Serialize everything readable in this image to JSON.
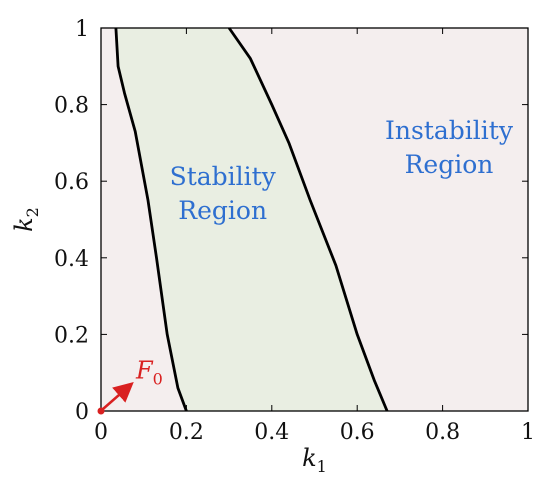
{
  "chart_data": {
    "type": "area",
    "xlim": [
      0,
      1
    ],
    "ylim": [
      0,
      1
    ],
    "x_ticks": [
      "0",
      "0.2",
      "0.4",
      "0.6",
      "0.8",
      "1"
    ],
    "y_ticks": [
      "0",
      "0.2",
      "0.4",
      "0.6",
      "0.8",
      "1"
    ],
    "xlabel": {
      "main": "k",
      "sub": "1"
    },
    "ylabel": {
      "main": "k",
      "sub": "2"
    },
    "grid": false,
    "colors": {
      "instability_fill": "#f4eeee",
      "stability_fill": "#e9eee2",
      "boundary": "#000000",
      "region_text": "#2e6fd0",
      "annotation": "#d92020"
    },
    "boundaries": [
      {
        "points": [
          [
            0.035,
            1.0
          ],
          [
            0.04,
            0.9
          ],
          [
            0.055,
            0.83
          ],
          [
            0.08,
            0.73
          ],
          [
            0.11,
            0.55
          ],
          [
            0.13,
            0.4
          ],
          [
            0.155,
            0.2
          ],
          [
            0.18,
            0.06
          ],
          [
            0.2,
            0.0
          ]
        ]
      },
      {
        "points": [
          [
            0.3,
            1.0
          ],
          [
            0.35,
            0.92
          ],
          [
            0.4,
            0.8
          ],
          [
            0.44,
            0.7
          ],
          [
            0.49,
            0.55
          ],
          [
            0.55,
            0.38
          ],
          [
            0.6,
            0.2
          ],
          [
            0.64,
            0.08
          ],
          [
            0.67,
            0.0
          ]
        ]
      }
    ],
    "regions": [
      {
        "label_lines": [
          "Stability",
          "Region"
        ],
        "position": [
          0.285,
          0.59
        ]
      },
      {
        "label_lines": [
          "Instability",
          "Region"
        ],
        "position": [
          0.815,
          0.71
        ]
      }
    ],
    "annotation": {
      "main": "F",
      "sub": "0",
      "point": [
        0,
        0
      ],
      "arrow_to": [
        0.075,
        0.075
      ]
    }
  }
}
